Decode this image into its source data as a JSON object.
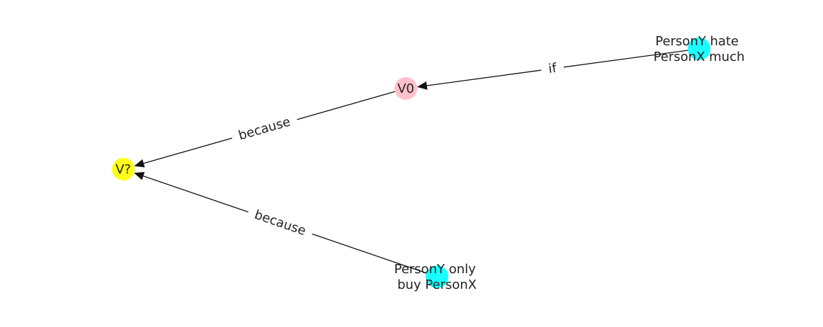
{
  "nodes": [
    {
      "id": "v0",
      "label_lines": [
        "V0"
      ],
      "color": "#ffc0cb"
    },
    {
      "id": "vq",
      "label_lines": [
        "V?"
      ],
      "color": "#ffff1a"
    },
    {
      "id": "n1",
      "label_lines": [
        "PersonY hate",
        "PersonX much"
      ],
      "color": "#1affff"
    },
    {
      "id": "n2",
      "label_lines": [
        "PersonY only",
        "buy PersonX"
      ],
      "color": "#1affff"
    }
  ],
  "edges": [
    {
      "from": "n1",
      "to": "v0",
      "label": "if"
    },
    {
      "from": "v0",
      "to": "vq",
      "label": "because"
    },
    {
      "from": "n2",
      "to": "vq",
      "label": "because"
    }
  ]
}
